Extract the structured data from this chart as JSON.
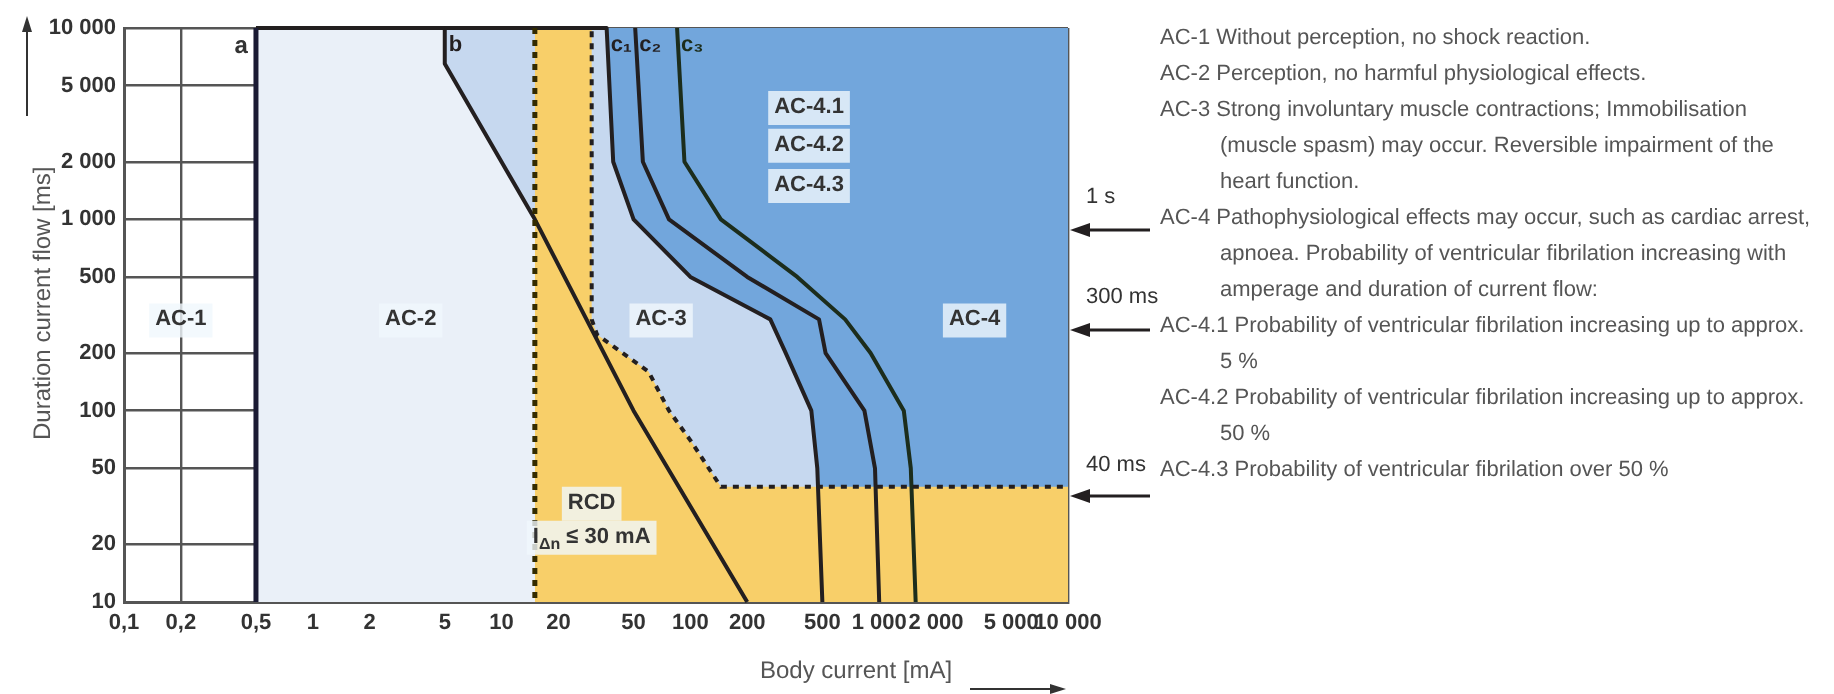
{
  "chart_data": {
    "type": "line",
    "xlabel": "Body current [mA]",
    "ylabel": "Duration current flow [ms]",
    "log": "xy",
    "grid": true,
    "legend": false,
    "marker": "none",
    "xlim": [
      0.1,
      10000
    ],
    "ylim": [
      10,
      10000
    ],
    "xticks": [
      {
        "value": 0.1,
        "label": "0,1"
      },
      {
        "value": 0.2,
        "label": "0,2"
      },
      {
        "value": 0.5,
        "label": "0,5"
      },
      1,
      2,
      5,
      10,
      20,
      50,
      100,
      200,
      500,
      {
        "value": 1000,
        "label": "1 000"
      },
      {
        "value": 2000,
        "label": "2 000"
      },
      {
        "value": 5000,
        "label": "5 000"
      },
      {
        "value": 10000,
        "label": "10 000"
      }
    ],
    "yticks": [
      10,
      20,
      50,
      100,
      200,
      500,
      {
        "value": 1000,
        "label": "1 000"
      },
      {
        "value": 2000,
        "label": "2 000"
      },
      {
        "value": 5000,
        "label": "5 000"
      },
      {
        "value": 10000,
        "label": "10 000"
      }
    ],
    "series": [
      {
        "type": "line",
        "name": "c₂",
        "color": "#231f20",
        "x": [
          51,
          56,
          77,
          200,
          480,
          520,
          835,
          950,
          1000
        ],
        "values": [
          10000,
          2000,
          1000,
          500,
          300,
          200,
          100,
          50,
          10
        ]
      },
      {
        "type": "line",
        "name": "c₃",
        "color": "#1c2d1c",
        "x": [
          85,
          93,
          145,
          368,
          660,
          900,
          1350,
          1470,
          1560
        ],
        "values": [
          10000,
          2000,
          1000,
          500,
          300,
          200,
          100,
          50,
          10
        ]
      },
      {
        "type": "area",
        "color": "#f8cf69",
        "line_style": "dotted",
        "x": [
          15,
          30,
          30,
          32,
          60,
          77,
          100,
          145,
          10000
        ],
        "values": [
          10000,
          10000,
          300,
          250,
          160,
          100,
          70,
          40,
          40
        ]
      },
      {
        "type": "area",
        "name": "b",
        "color": "#eaf0f8",
        "line_style": "solid",
        "x": [
          0.5,
          5,
          5,
          15,
          50,
          200
        ],
        "values": [
          10000,
          10000,
          6500,
          1000,
          100,
          10
        ]
      },
      {
        "type": "area",
        "name": "c₁",
        "color": "#c6d8ef",
        "line_style": "solid",
        "x": [
          5,
          36,
          39,
          50,
          100,
          265,
          320,
          437,
          470,
          500
        ],
        "values": [
          10000,
          10000,
          2000,
          1000,
          500,
          300,
          200,
          100,
          50,
          10
        ]
      },
      {
        "type": "area",
        "color": "#72a6dc",
        "x": [
          36,
          10000
        ],
        "values": [
          10000,
          10000
        ]
      }
    ],
    "ref_lines": [
      {
        "axis": "x",
        "value": 0.5,
        "label": "a",
        "color": "#1a1a33"
      },
      {
        "axis": "x",
        "value": 15,
        "color": "#332b00",
        "line_style": "dotted"
      }
    ],
    "annotations": [
      {
        "text": "AC-1",
        "x": 0.2,
        "y": 300
      },
      {
        "text": "AC-2",
        "x": 3.3,
        "y": 300
      },
      {
        "text": "AC-3",
        "x": 70,
        "y": 300
      },
      {
        "text": "AC-4",
        "x": 3200,
        "y": 300
      },
      {
        "text": "AC-4.1",
        "x": 425,
        "y": 3860
      },
      {
        "text": "AC-4.2",
        "x": 425,
        "y": 2450
      },
      {
        "text": "AC-4.3",
        "x": 425,
        "y": 1510
      },
      {
        "text": "1 s",
        "x": 10000,
        "y": 1000
      },
      {
        "text": "300 ms",
        "x": 10000,
        "y": 300
      },
      {
        "text": "40 ms",
        "x": 10000,
        "y": 40
      },
      {
        "text": "RCD",
        "x": 30,
        "y": 33
      },
      "I$_{Δn}$ ≤ 30 mA",
      "AC-1 Without perception, no shock reaction.",
      "AC-2 Perception, no harmful physiological effects.",
      "AC-3 Strong involuntary muscle contractions; Immobilisation (muscle spasm) may occur. Reversible impairment of the heart function.",
      "AC-4 Pathophysiological effects may occur, such as cardiac arrest, apnoea. Probability of ventricular fibrilation increasing with amperage and duration of current flow:",
      "AC-4.1 Probability of ventricular fibrilation increasing up to approx. 5 %",
      "AC-4.2 Probability of ventricular fibrilation increasing up to approx. 50 %",
      "AC-4.3 Probability of ventricular fibrilation over 50 %"
    ]
  }
}
